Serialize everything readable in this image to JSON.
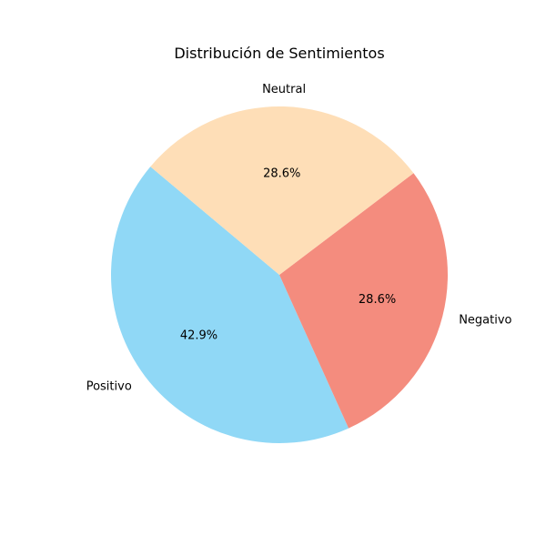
{
  "chart_data": {
    "type": "pie",
    "title": "Distribución de Sentimientos",
    "slices": [
      {
        "label": "Positivo",
        "value": 42.9,
        "pct_label": "42.9%",
        "color": "#90d8f6"
      },
      {
        "label": "Negativo",
        "value": 28.6,
        "pct_label": "28.6%",
        "color": "#f48c7e"
      },
      {
        "label": "Neutral",
        "value": 28.6,
        "pct_label": "28.6%",
        "color": "#fedeb7"
      }
    ],
    "start_angle_deg": 140,
    "direction": "counterclockwise"
  }
}
